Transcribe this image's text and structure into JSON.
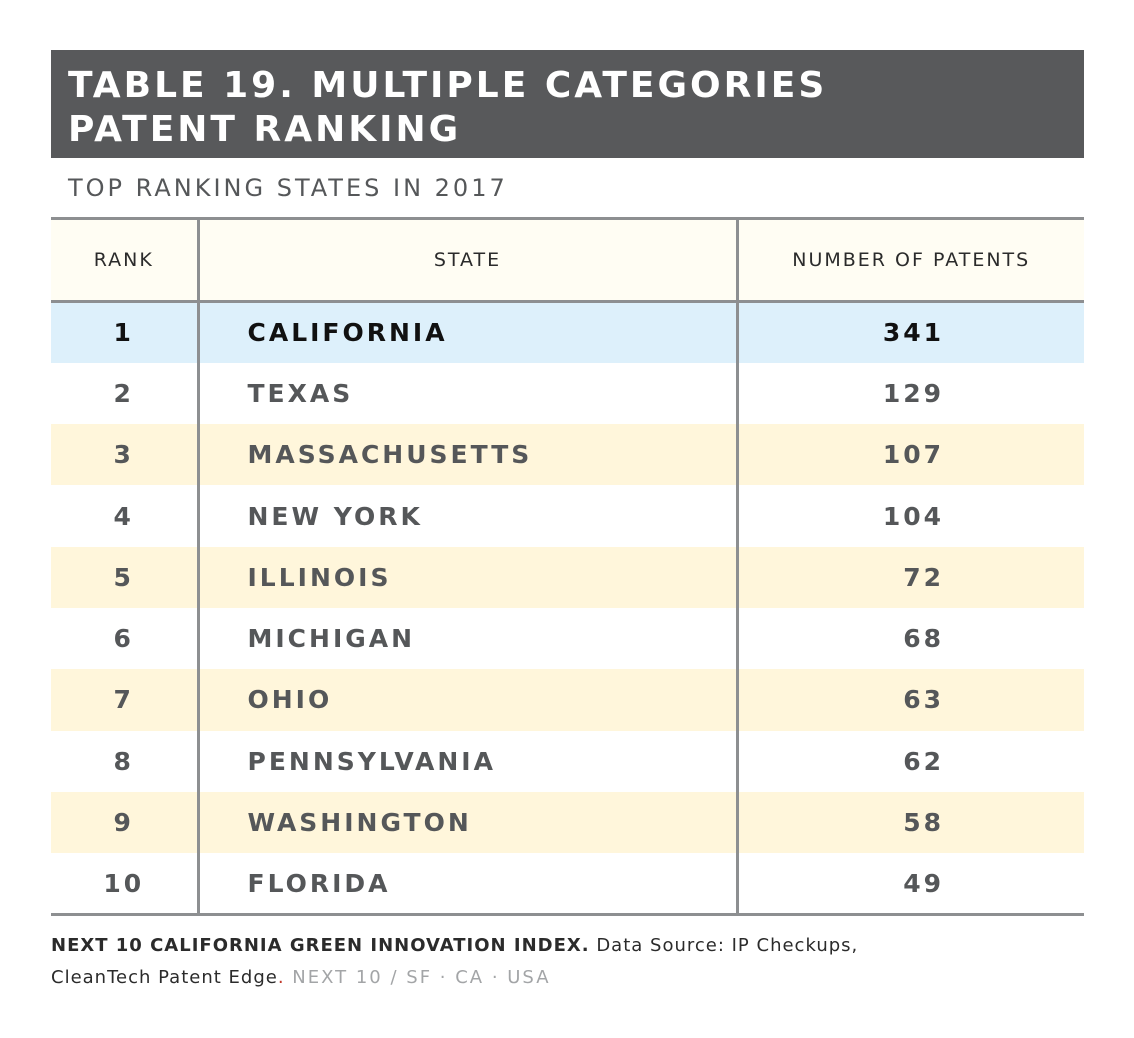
{
  "header": {
    "title_line1": "TABLE 19. MULTIPLE CATEGORIES",
    "title_line2": "PATENT RANKING",
    "subtitle": "TOP RANKING STATES IN 2017"
  },
  "colors": {
    "title_band": "#58595b",
    "highlight_row": "#ddf0fb",
    "alt_row": "#fff6db",
    "header_row": "#fffdf3"
  },
  "chart_data": {
    "type": "table",
    "title": "TABLE 19. MULTIPLE CATEGORIES PATENT RANKING",
    "subtitle": "TOP RANKING STATES IN 2017",
    "columns": [
      "RANK",
      "STATE",
      "NUMBER OF PATENTS"
    ],
    "rows": [
      {
        "rank": "1",
        "state": "CALIFORNIA",
        "patents": "341",
        "style": "blue"
      },
      {
        "rank": "2",
        "state": "TEXAS",
        "patents": "129",
        "style": "white"
      },
      {
        "rank": "3",
        "state": "MASSACHUSETTS",
        "patents": "107",
        "style": "cream"
      },
      {
        "rank": "4",
        "state": "NEW YORK",
        "patents": "104",
        "style": "white"
      },
      {
        "rank": "5",
        "state": "ILLINOIS",
        "patents": "72",
        "style": "cream"
      },
      {
        "rank": "6",
        "state": "MICHIGAN",
        "patents": "68",
        "style": "white"
      },
      {
        "rank": "7",
        "state": "OHIO",
        "patents": "63",
        "style": "cream"
      },
      {
        "rank": "8",
        "state": "PENNSYLVANIA",
        "patents": "62",
        "style": "white"
      },
      {
        "rank": "9",
        "state": "WASHINGTON",
        "patents": "58",
        "style": "cream"
      },
      {
        "rank": "10",
        "state": "FLORIDA",
        "patents": "49",
        "style": "white"
      }
    ]
  },
  "footer": {
    "source_bold": "NEXT 10 CALIFORNIA GREEN INNOVATION INDEX.",
    "source_text": " Data Source: IP Checkups,",
    "source_text2": "CleanTech Patent Edge",
    "dot": ".",
    "org": " NEXT 10 / SF · CA · USA"
  }
}
